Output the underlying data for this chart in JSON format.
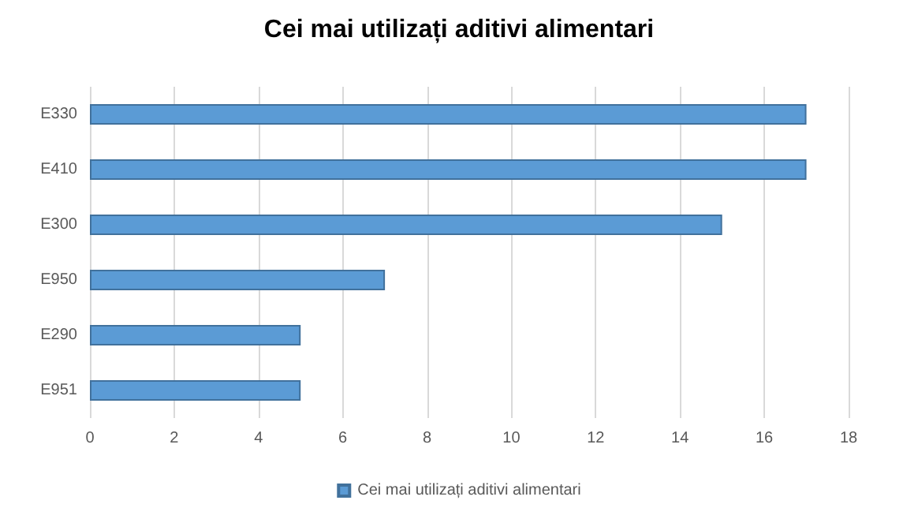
{
  "chart_data": {
    "type": "bar",
    "orientation": "horizontal",
    "title": "Cei mai utilizați aditivi alimentari",
    "categories": [
      "E330",
      "E410",
      "E300",
      "E950",
      "E290",
      "E951"
    ],
    "series": [
      {
        "name": "Cei mai utilizați aditivi alimentari",
        "color": "#5b9bd5",
        "values": [
          17,
          17,
          15,
          7,
          5,
          5
        ]
      }
    ],
    "xlim": [
      0,
      18
    ],
    "xticks": [
      0,
      2,
      4,
      6,
      8,
      10,
      12,
      14,
      16,
      18
    ],
    "grid": "x",
    "legend": "bottom"
  }
}
